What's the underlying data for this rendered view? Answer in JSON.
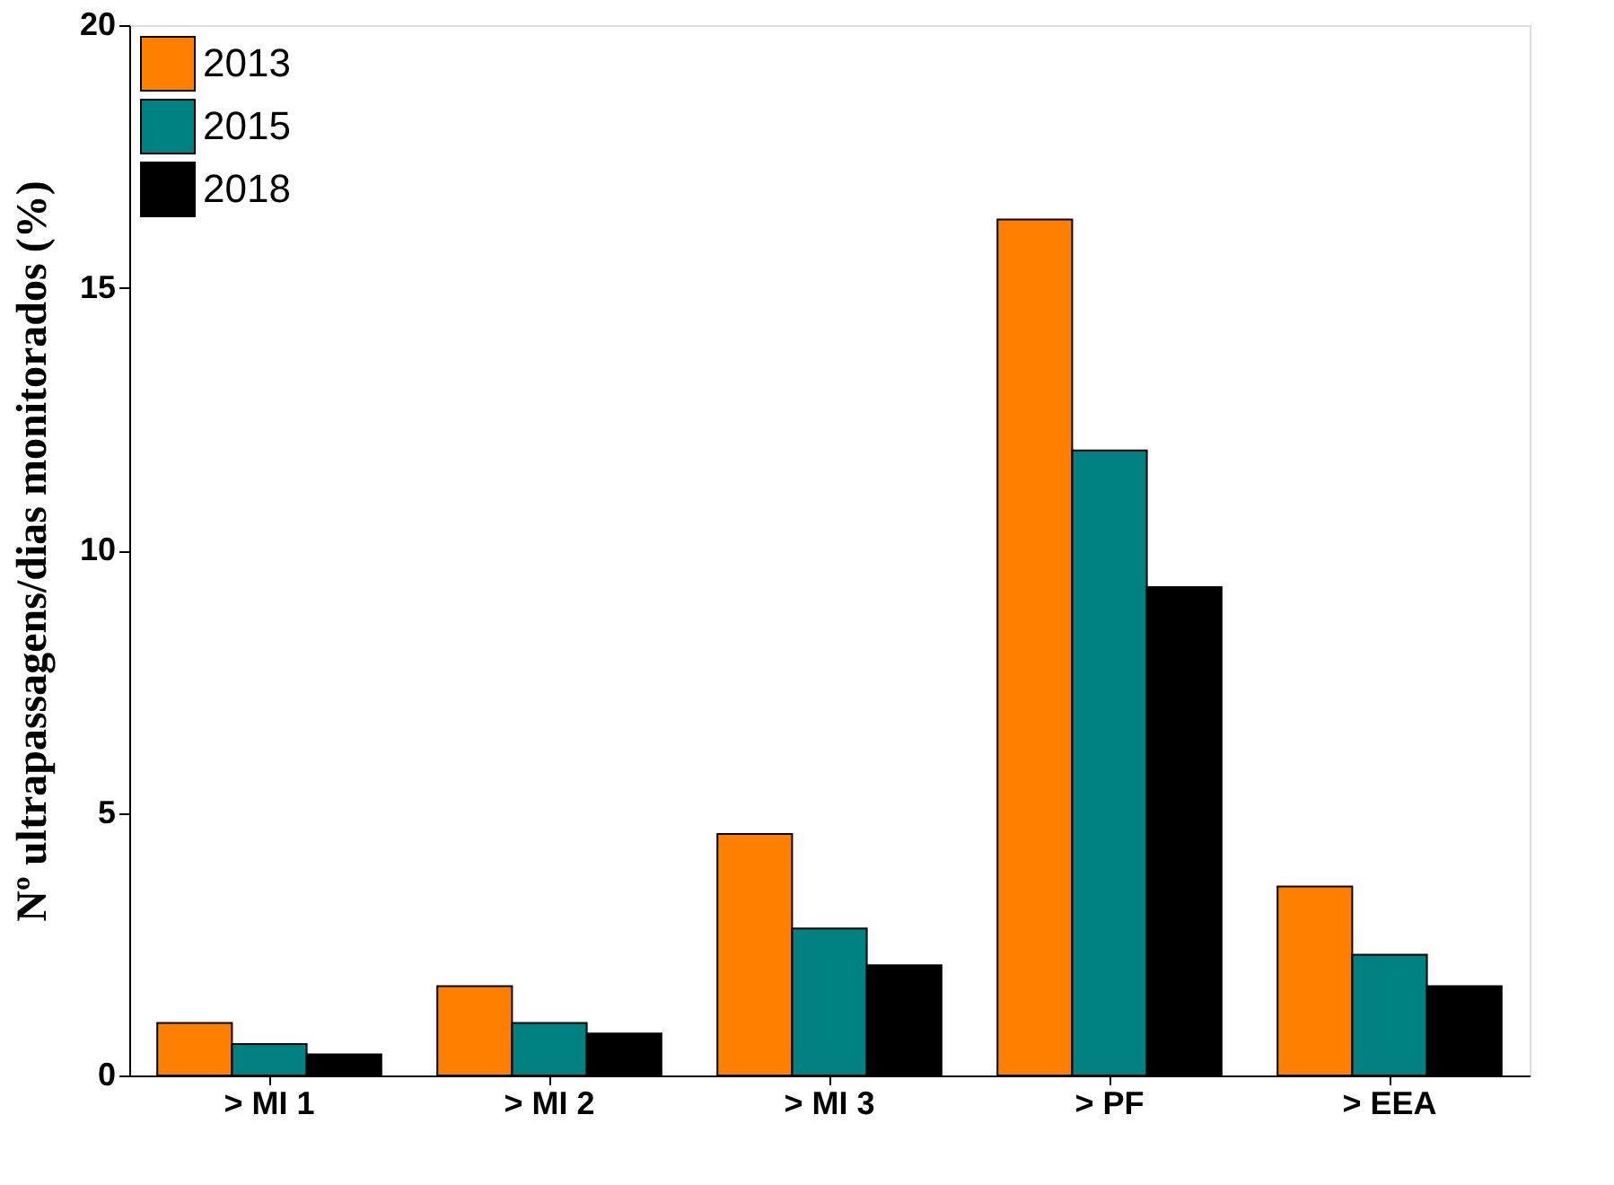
{
  "chart_data": {
    "type": "bar",
    "ylabel": "Nº ultrapassagens/dias monitorados (%)",
    "categories": [
      "> MI 1",
      "> MI 2",
      "> MI 3",
      "> PF",
      "> EEA"
    ],
    "series": [
      {
        "name": "2013",
        "color": "#ff8000",
        "values": [
          1.0,
          1.7,
          4.6,
          16.3,
          3.6
        ]
      },
      {
        "name": "2015",
        "color": "#008080",
        "values": [
          0.6,
          1.0,
          2.8,
          11.9,
          2.3
        ]
      },
      {
        "name": "2018",
        "color": "#000000",
        "values": [
          0.4,
          0.8,
          2.1,
          9.3,
          1.7
        ]
      }
    ],
    "ylim": [
      0,
      20
    ],
    "yticks": [
      0,
      5,
      10,
      15,
      20
    ],
    "grid": false,
    "legend": "top left"
  }
}
